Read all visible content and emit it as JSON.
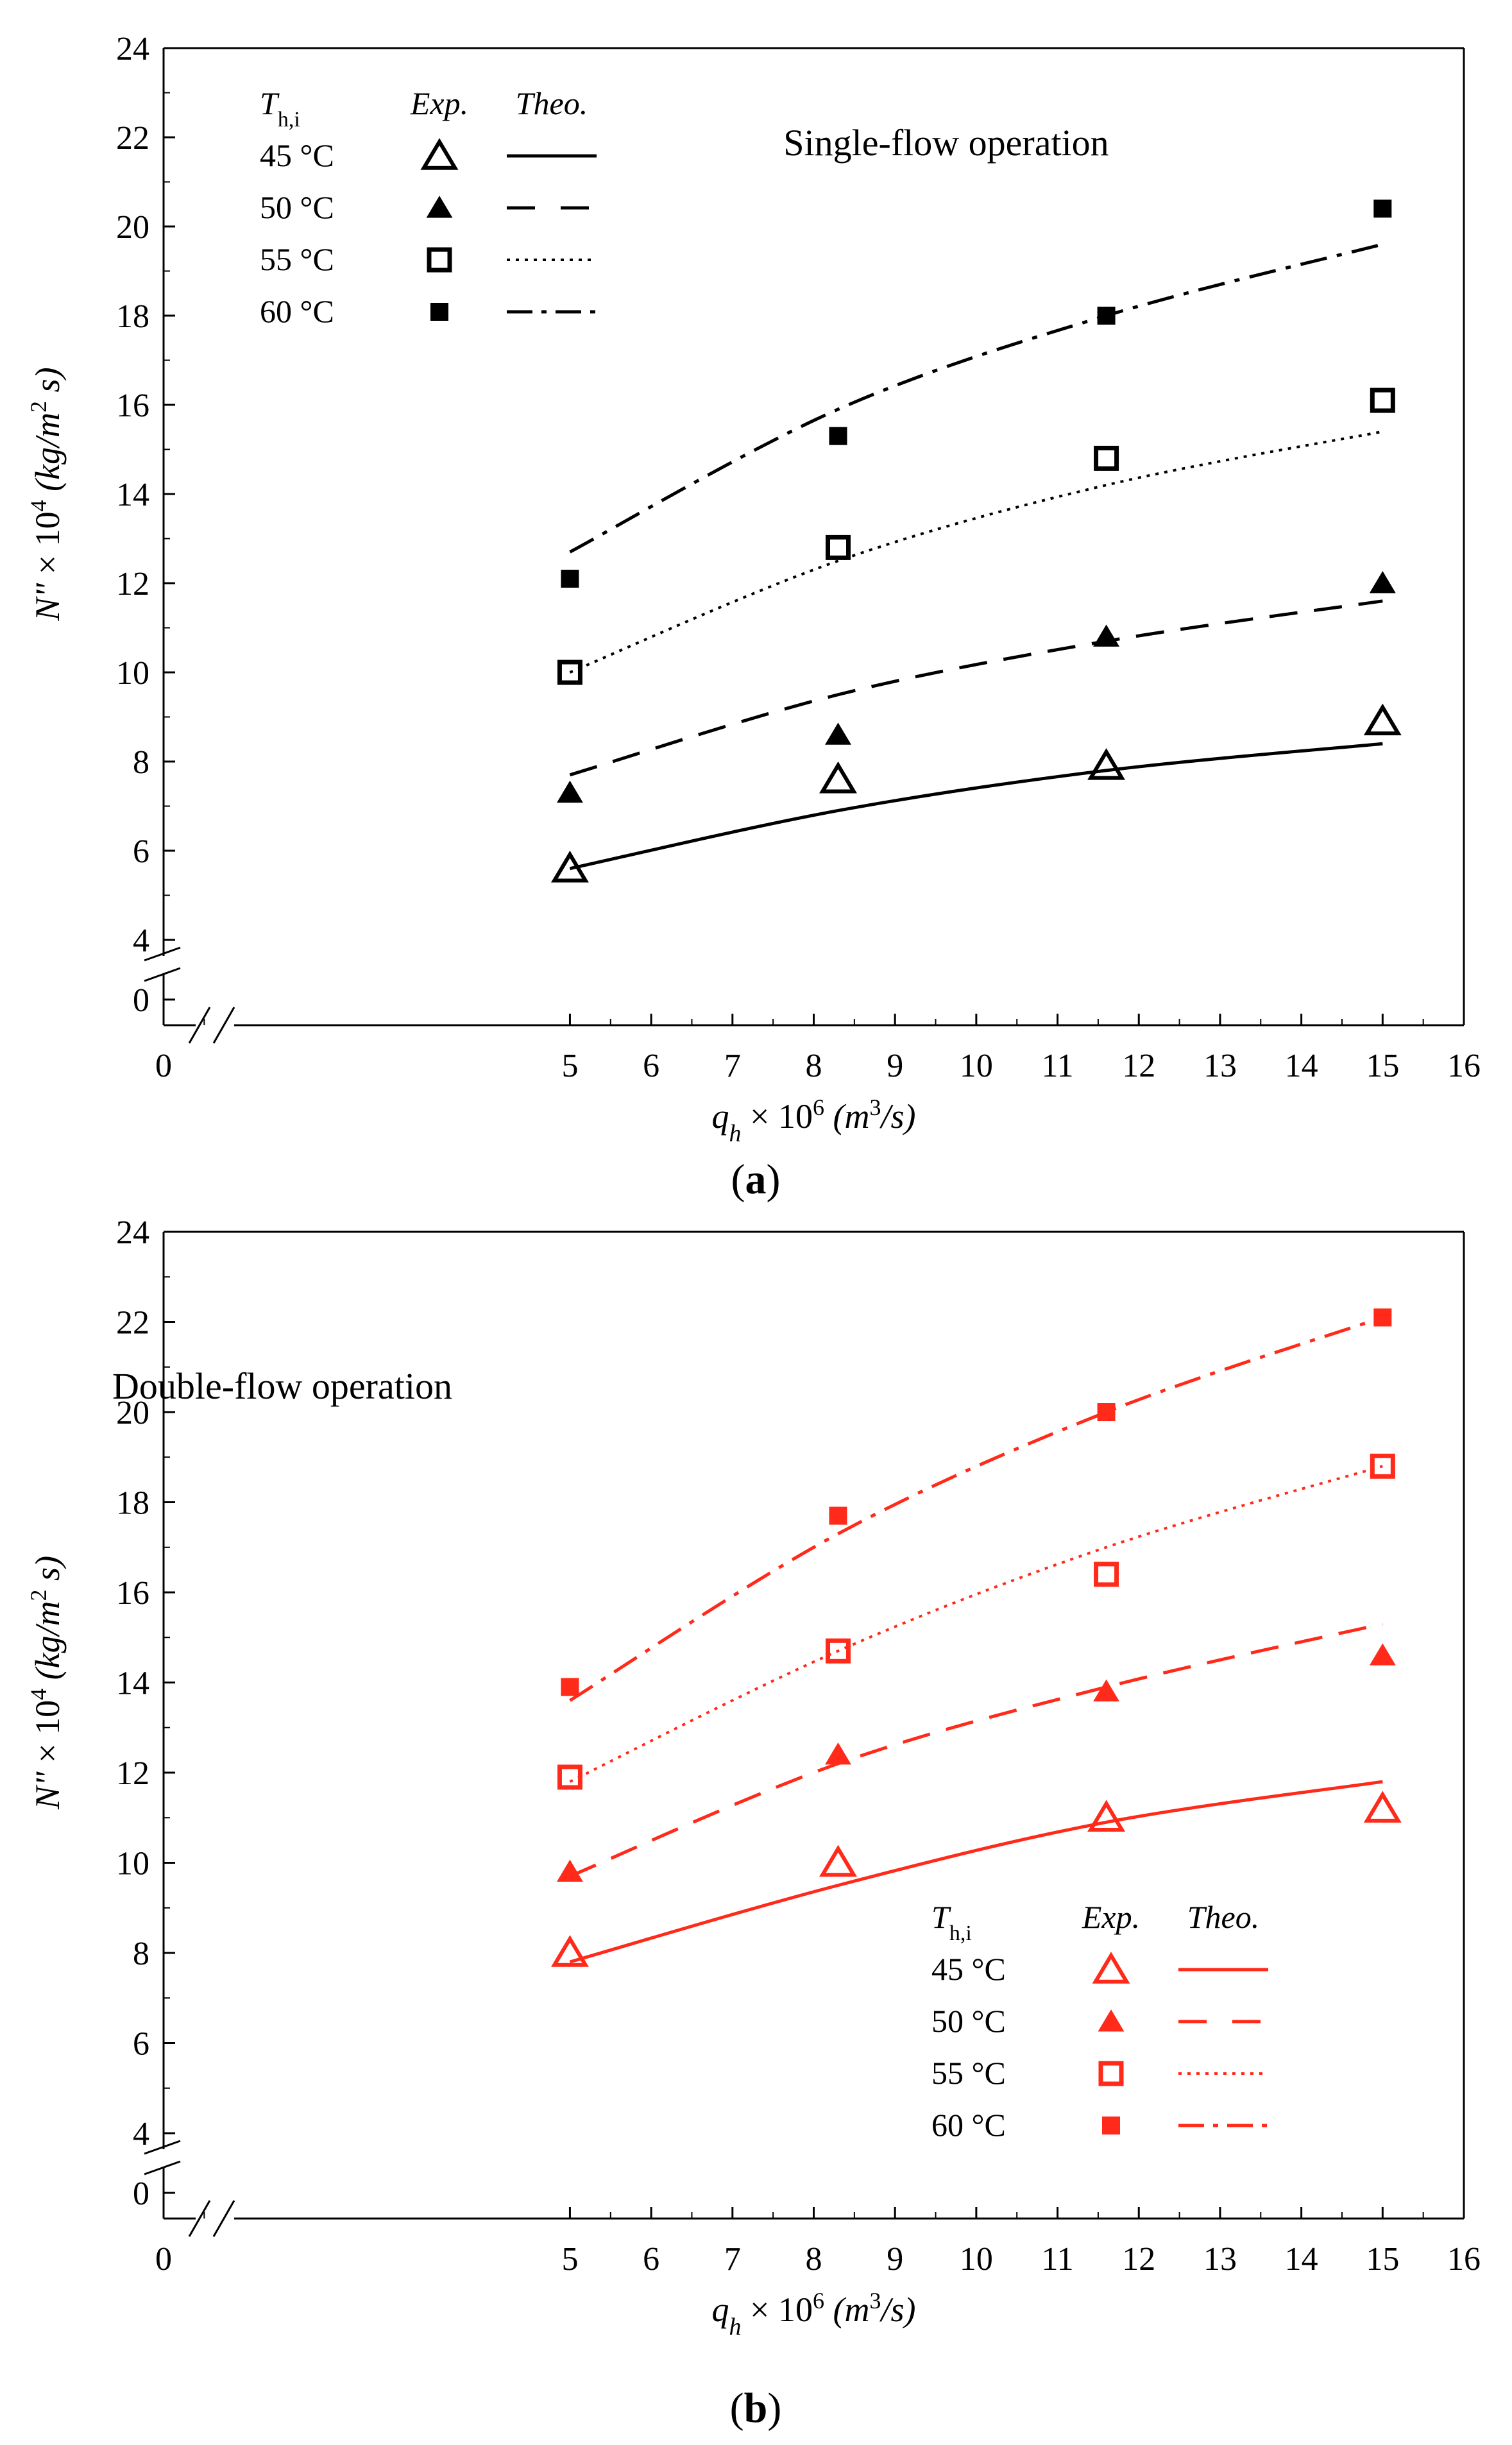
{
  "chart_data": [
    {
      "type": "scatter",
      "panel": "a",
      "panel_label_open": "(",
      "panel_label_letter": "a",
      "panel_label_close": ")",
      "title": "Single-flow operation",
      "xlabel": "q_h × 10^6 (m^3/s)",
      "ylabel": "N\" × 10^4 (kg/m^2 s)",
      "xlim": [
        0,
        16
      ],
      "ylim_upper": [
        4,
        24
      ],
      "axis_break": true,
      "color": "#000000",
      "xticks": [
        "0",
        "5",
        "6",
        "7",
        "8",
        "9",
        "10",
        "11",
        "12",
        "13",
        "14",
        "15",
        "16"
      ],
      "yticks": [
        "0",
        "4",
        "6",
        "8",
        "10",
        "12",
        "14",
        "16",
        "18",
        "20",
        "22",
        "24"
      ],
      "legend": {
        "position": "top-left",
        "header_symbol": "T",
        "header_sub": "h,i",
        "header_exp": "Exp.",
        "header_theo": "Theo."
      },
      "series": [
        {
          "name": "45 °C",
          "marker": "open-triangle",
          "line": "solid",
          "exp_x": [
            5,
            8.3,
            11.6,
            15
          ],
          "exp_y": [
            5.6,
            7.6,
            7.9,
            8.9
          ],
          "theo_x": [
            5,
            8.3,
            11.6,
            15
          ],
          "theo_y": [
            5.6,
            6.9,
            7.8,
            8.4
          ]
        },
        {
          "name": "50 °C",
          "marker": "filled-triangle",
          "line": "dash",
          "exp_x": [
            5,
            8.3,
            11.6,
            15
          ],
          "exp_y": [
            7.3,
            8.6,
            10.8,
            12.0
          ],
          "theo_x": [
            5,
            8.3,
            11.6,
            15
          ],
          "theo_y": [
            7.7,
            9.5,
            10.7,
            11.6
          ]
        },
        {
          "name": "55 °C",
          "marker": "open-square",
          "line": "dot",
          "exp_x": [
            5,
            8.3,
            11.6,
            15
          ],
          "exp_y": [
            10.0,
            12.8,
            14.8,
            16.1
          ],
          "theo_x": [
            5,
            8.3,
            11.6,
            15
          ],
          "theo_y": [
            10.0,
            12.5,
            14.2,
            15.4
          ]
        },
        {
          "name": "60 °C",
          "marker": "filled-square",
          "line": "dashdot",
          "exp_x": [
            5,
            8.3,
            11.6,
            15
          ],
          "exp_y": [
            12.1,
            15.3,
            18.0,
            20.4
          ],
          "theo_x": [
            5,
            8.3,
            11.6,
            15
          ],
          "theo_y": [
            12.7,
            15.9,
            18.0,
            19.6
          ]
        }
      ]
    },
    {
      "type": "scatter",
      "panel": "b",
      "panel_label_open": "(",
      "panel_label_letter": "b",
      "panel_label_close": ")",
      "title": "Double-flow operation",
      "xlabel": "q_h × 10^6 (m^3/s)",
      "ylabel": "N\" × 10^4 (kg/m^2 s)",
      "xlim": [
        0,
        16
      ],
      "ylim_upper": [
        4,
        24
      ],
      "axis_break": true,
      "color": "#ff2a1a",
      "xticks": [
        "0",
        "5",
        "6",
        "7",
        "8",
        "9",
        "10",
        "11",
        "12",
        "13",
        "14",
        "15",
        "16"
      ],
      "yticks": [
        "0",
        "4",
        "6",
        "8",
        "10",
        "12",
        "14",
        "16",
        "18",
        "20",
        "22",
        "24"
      ],
      "legend": {
        "position": "bottom-right",
        "header_symbol": "T",
        "header_sub": "h,i",
        "header_exp": "Exp.",
        "header_theo": "Theo."
      },
      "series": [
        {
          "name": "45 °C",
          "marker": "open-triangle",
          "line": "solid",
          "exp_x": [
            5,
            8.3,
            11.6,
            15
          ],
          "exp_y": [
            8.0,
            10.0,
            11.0,
            11.2
          ],
          "theo_x": [
            5,
            8.3,
            11.6,
            15
          ],
          "theo_y": [
            7.8,
            9.5,
            10.9,
            11.8
          ]
        },
        {
          "name": "50 °C",
          "marker": "filled-triangle",
          "line": "dash",
          "exp_x": [
            5,
            8.3,
            11.6,
            15
          ],
          "exp_y": [
            9.8,
            12.4,
            13.8,
            14.6
          ],
          "theo_x": [
            5,
            8.3,
            11.6,
            15
          ],
          "theo_y": [
            9.7,
            12.2,
            13.9,
            15.3
          ]
        },
        {
          "name": "55 °C",
          "marker": "open-square",
          "line": "dot",
          "exp_x": [
            5,
            8.3,
            11.6,
            15
          ],
          "exp_y": [
            11.9,
            14.7,
            16.4,
            18.8
          ],
          "theo_x": [
            5,
            8.3,
            11.6,
            15
          ],
          "theo_y": [
            11.8,
            14.7,
            17.0,
            18.8
          ]
        },
        {
          "name": "60 °C",
          "marker": "filled-square",
          "line": "dashdot",
          "exp_x": [
            5,
            8.3,
            11.6,
            15
          ],
          "exp_y": [
            13.9,
            17.7,
            20.0,
            22.1
          ],
          "theo_x": [
            5,
            8.3,
            11.6,
            15
          ],
          "theo_y": [
            13.6,
            17.3,
            20.0,
            22.1
          ]
        }
      ]
    }
  ]
}
